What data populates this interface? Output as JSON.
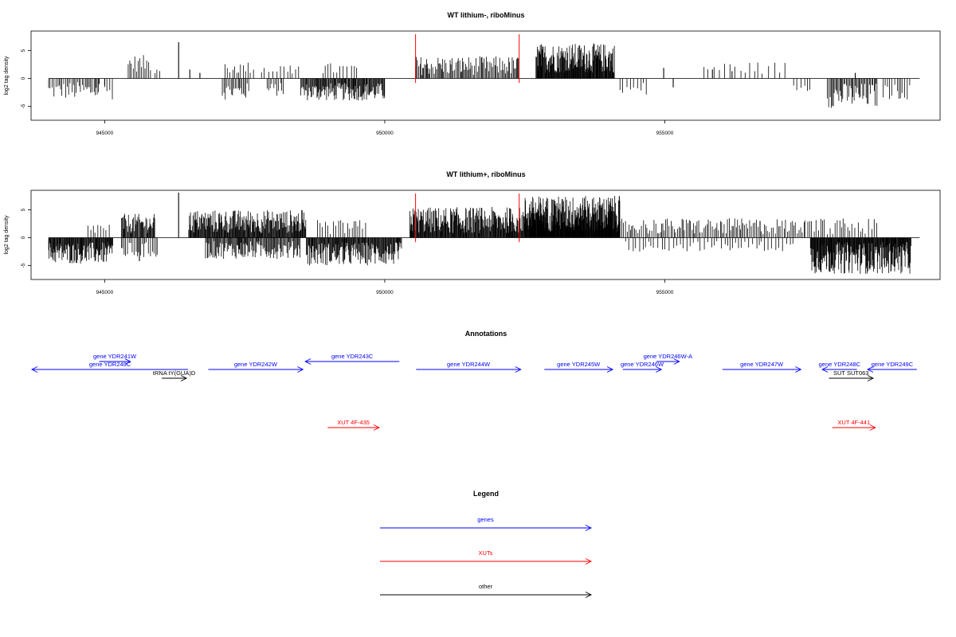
{
  "colors": {
    "gene": "#0000ff",
    "xut": "#ff0000",
    "other": "#000000",
    "bar": "#000000",
    "marker": "#ff0000"
  },
  "panels": [
    {
      "title": "WT lithium-, riboMinus",
      "ylabel": "log2 tag density",
      "ytick_labels": [
        "-5",
        "0",
        "5"
      ],
      "xtick_labels": [
        "945000",
        "950000",
        "955000"
      ]
    },
    {
      "title": "WT lithium+, riboMinus",
      "ylabel": "log2 tag density",
      "ytick_labels": [
        "-5",
        "0",
        "5"
      ],
      "xtick_labels": [
        "945000",
        "950000",
        "955000"
      ]
    }
  ],
  "annotations": {
    "title": "Annotations",
    "features": [
      {
        "label": "gene YDR240C",
        "type": "gene",
        "strand": "-",
        "start": 943700,
        "end": 946490
      },
      {
        "label": "gene YDR241W",
        "type": "gene",
        "strand": "+",
        "start": 944900,
        "end": 945460
      },
      {
        "label": "tRNA tY(GUA)D",
        "type": "other",
        "strand": "+",
        "start": 946020,
        "end": 946460
      },
      {
        "label": "gene YDR242W",
        "type": "gene",
        "strand": "+",
        "start": 946850,
        "end": 948540
      },
      {
        "label": "gene YDR243C",
        "type": "gene",
        "strand": "-",
        "start": 948580,
        "end": 950260
      },
      {
        "label": "XUT 4F-435",
        "type": "xut",
        "strand": "+",
        "start": 948980,
        "end": 949900
      },
      {
        "label": "gene YDR244W",
        "type": "gene",
        "strand": "+",
        "start": 950560,
        "end": 952430
      },
      {
        "label": "gene YDR245W",
        "type": "gene",
        "strand": "+",
        "start": 952850,
        "end": 954070
      },
      {
        "label": "gene YDR246W",
        "type": "gene",
        "strand": "+",
        "start": 954250,
        "end": 954940
      },
      {
        "label": "gene YDR246W-A",
        "type": "gene",
        "strand": "+",
        "start": 954850,
        "end": 955260
      },
      {
        "label": "gene YDR247W",
        "type": "gene",
        "strand": "+",
        "start": 956030,
        "end": 957430
      },
      {
        "label": "gene YDR248C",
        "type": "gene",
        "strand": "-",
        "start": 957810,
        "end": 958430
      },
      {
        "label": "gene YDR249C",
        "type": "gene",
        "strand": "-",
        "start": 958620,
        "end": 959500
      },
      {
        "label": "SUT SUT063",
        "type": "other",
        "strand": "+",
        "start": 957930,
        "end": 958720
      },
      {
        "label": "XUT 4F-441",
        "type": "xut",
        "strand": "+",
        "start": 957990,
        "end": 958760
      }
    ]
  },
  "legend": {
    "title": "Legend",
    "items": [
      {
        "label": "genes",
        "type": "gene"
      },
      {
        "label": "XUTs",
        "type": "xut"
      },
      {
        "label": "other",
        "type": "other"
      }
    ]
  },
  "chart_data": [
    {
      "type": "bar",
      "title": "WT lithium-, riboMinus",
      "xlabel": "",
      "ylabel": "log2 tag density",
      "xlim": [
        943700,
        959900
      ],
      "ylim": [
        -7.5,
        8.5
      ],
      "xticks": [
        945000,
        950000,
        955000
      ],
      "yticks": [
        -5,
        0,
        5
      ],
      "red_markers": [
        950550,
        952400
      ],
      "density_regions": [
        {
          "start": 944000,
          "end": 944900,
          "min": -3.8,
          "max": -0.6,
          "step": 28
        },
        {
          "start": 945000,
          "end": 945150,
          "min": -3.8,
          "max": -1.0,
          "step": 40
        },
        {
          "start": 945420,
          "end": 945850,
          "min": 1.2,
          "max": 4.2,
          "step": 28
        },
        {
          "start": 945900,
          "end": 946000,
          "min": 0.8,
          "max": 2.5,
          "step": 40
        },
        {
          "start": 947100,
          "end": 947600,
          "min": -3.8,
          "max": -0.8,
          "step": 24
        },
        {
          "start": 947150,
          "end": 947700,
          "min": 0.8,
          "max": 3.0,
          "step": 45
        },
        {
          "start": 947800,
          "end": 948500,
          "min": 0.6,
          "max": 2.8,
          "step": 60
        },
        {
          "start": 947900,
          "end": 948200,
          "min": -3.2,
          "max": -0.8,
          "step": 30
        },
        {
          "start": 948500,
          "end": 950000,
          "min": -4.0,
          "max": -0.8,
          "step": 13
        },
        {
          "start": 948900,
          "end": 949500,
          "min": 0.6,
          "max": 2.8,
          "step": 60
        },
        {
          "start": 950550,
          "end": 952400,
          "min": 0.6,
          "max": 4.0,
          "step": 20
        },
        {
          "start": 952700,
          "end": 954100,
          "min": 1.0,
          "max": 6.3,
          "step": 9
        },
        {
          "start": 954200,
          "end": 954700,
          "min": -3.5,
          "max": -0.6,
          "step": 60
        },
        {
          "start": 955700,
          "end": 957200,
          "min": 0.8,
          "max": 3.0,
          "step": 90
        },
        {
          "start": 957300,
          "end": 957600,
          "min": -2.4,
          "max": -0.8,
          "step": 60
        },
        {
          "start": 957900,
          "end": 958800,
          "min": -5.3,
          "max": -0.8,
          "step": 20
        },
        {
          "start": 958900,
          "end": 959400,
          "min": -3.8,
          "max": -1.0,
          "step": 40
        }
      ],
      "spikes": [
        {
          "x": 944900,
          "y": -1.0
        },
        {
          "x": 945000,
          "y": -1.2
        },
        {
          "x": 946320,
          "y": 6.5
        },
        {
          "x": 946520,
          "y": 1.6
        },
        {
          "x": 946700,
          "y": 1.0
        },
        {
          "x": 954980,
          "y": 1.9
        },
        {
          "x": 955150,
          "y": -1.6
        },
        {
          "x": 955850,
          "y": 1.6
        },
        {
          "x": 956200,
          "y": 1.3
        },
        {
          "x": 958400,
          "y": 1.0
        }
      ]
    },
    {
      "type": "bar",
      "title": "WT lithium+, riboMinus",
      "xlabel": "",
      "ylabel": "log2 tag density",
      "xlim": [
        943700,
        959900
      ],
      "ylim": [
        -7.5,
        8.5
      ],
      "xticks": [
        945000,
        950000,
        955000
      ],
      "yticks": [
        -5,
        0,
        5
      ],
      "red_markers": [
        950550,
        952400
      ],
      "density_regions": [
        {
          "start": 944000,
          "end": 945150,
          "min": -4.7,
          "max": -0.8,
          "step": 11
        },
        {
          "start": 944700,
          "end": 945100,
          "min": 0.6,
          "max": 2.8,
          "step": 45
        },
        {
          "start": 945300,
          "end": 945900,
          "min": 0.8,
          "max": 4.3,
          "step": 13
        },
        {
          "start": 945300,
          "end": 945950,
          "min": -3.8,
          "max": -0.8,
          "step": 30
        },
        {
          "start": 946500,
          "end": 948600,
          "min": 0.8,
          "max": 5.0,
          "step": 11
        },
        {
          "start": 946800,
          "end": 948500,
          "min": -3.8,
          "max": -0.6,
          "step": 15
        },
        {
          "start": 948600,
          "end": 950300,
          "min": -5.0,
          "max": -0.8,
          "step": 11
        },
        {
          "start": 948800,
          "end": 949700,
          "min": 0.6,
          "max": 3.2,
          "step": 45
        },
        {
          "start": 950450,
          "end": 952500,
          "min": 0.8,
          "max": 5.5,
          "step": 10
        },
        {
          "start": 952500,
          "end": 954200,
          "min": 1.0,
          "max": 7.5,
          "step": 6
        },
        {
          "start": 954200,
          "end": 957500,
          "min": 0.6,
          "max": 3.5,
          "step": 28
        },
        {
          "start": 954300,
          "end": 957300,
          "min": -2.5,
          "max": -0.6,
          "step": 60
        },
        {
          "start": 957600,
          "end": 959400,
          "min": -6.5,
          "max": -0.8,
          "step": 9
        },
        {
          "start": 957500,
          "end": 958800,
          "min": 0.6,
          "max": 3.5,
          "step": 45
        }
      ],
      "spikes": [
        {
          "x": 946320,
          "y": 8.1
        },
        {
          "x": 945620,
          "y": -4.2
        },
        {
          "x": 953000,
          "y": 6.8
        },
        {
          "x": 956700,
          "y": 3.0
        }
      ]
    }
  ]
}
